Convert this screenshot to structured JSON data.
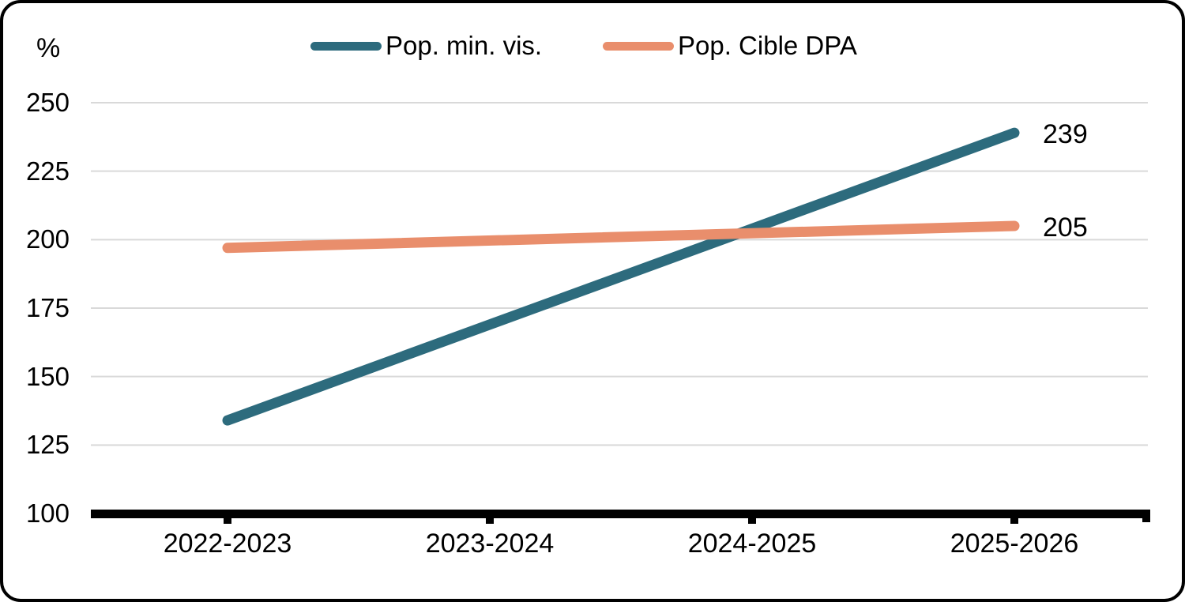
{
  "colors": {
    "background": "#ffffff",
    "border": "#000000",
    "axis": "#000000",
    "gridline": "#d9d9d9",
    "text": "#000000",
    "series_teal": "#2d6b7d",
    "series_orange": "#e98e6c"
  },
  "chart_data": {
    "type": "line",
    "title": "",
    "ylabel": "%",
    "xlabel": "",
    "ylim": [
      100,
      250
    ],
    "ytick_step": 25,
    "yticks": [
      250,
      225,
      200,
      175,
      150,
      125,
      100
    ],
    "categories": [
      "2022-2023",
      "2023-2024",
      "2024-2025",
      "2025-2026"
    ],
    "grid": "horizontal-only",
    "legend_position": "top-center",
    "series": [
      {
        "name": "Pop. min. vis.",
        "color": "#2d6b7d",
        "points": [
          {
            "x": "2022-2023",
            "y": 134
          },
          {
            "x": "2025-2026",
            "y": 239
          }
        ],
        "end_label": "239"
      },
      {
        "name": "Pop. Cible DPA",
        "color": "#e98e6c",
        "points": [
          {
            "x": "2022-2023",
            "y": 197
          },
          {
            "x": "2025-2026",
            "y": 205
          }
        ],
        "end_label": "205"
      }
    ]
  }
}
